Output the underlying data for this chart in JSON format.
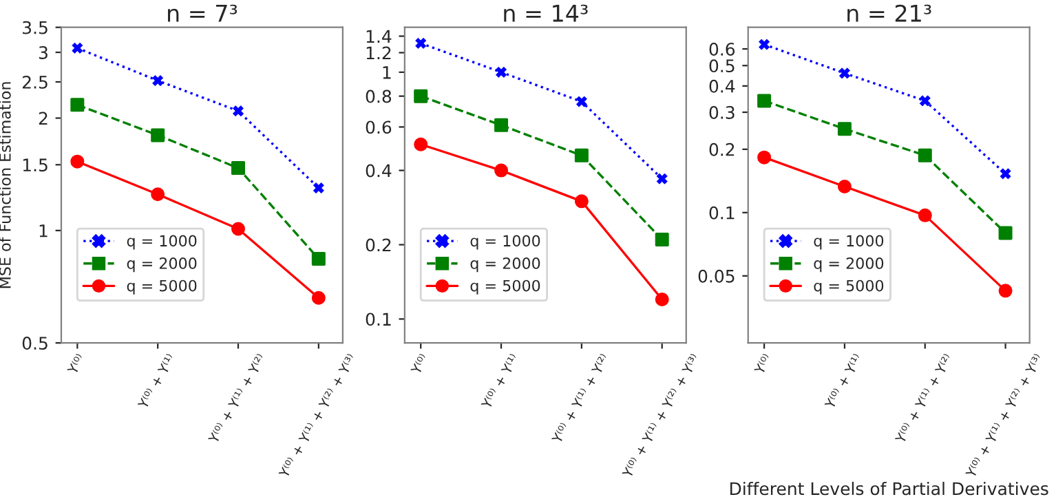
{
  "chart_data": [
    {
      "type": "line",
      "title": "n = 7³",
      "ylabel": "MSE of Function Estimation",
      "log": true,
      "legend": "bottom left",
      "grid": false,
      "categories": [
        "Y⁽⁰⁾",
        "Y⁽⁰⁾ + Y⁽¹⁾",
        "Y⁽⁰⁾ + Y⁽¹⁾ + Y⁽²⁾",
        "Y⁽⁰⁾ + Y⁽¹⁾ + Y⁽²⁾ + Y⁽³⁾"
      ],
      "ylim": [
        0.5,
        3.5
      ],
      "yticks": [
        0.5,
        1,
        1.5,
        2,
        2.5,
        3,
        3.5
      ],
      "series": [
        {
          "name": "q = 1000",
          "color": "#0000ff",
          "marker": "cross",
          "line_style": "dotted",
          "values": [
            3.08,
            2.52,
            2.09,
            1.3
          ]
        },
        {
          "name": "q = 2000",
          "color": "#008000",
          "marker": "square",
          "line_style": "dashed",
          "values": [
            2.17,
            1.8,
            1.47,
            0.84
          ]
        },
        {
          "name": "q = 5000",
          "color": "#ff0000",
          "marker": "circle",
          "line_style": "solid",
          "values": [
            1.53,
            1.25,
            1.01,
            0.66
          ]
        }
      ]
    },
    {
      "type": "line",
      "title": "n = 14³",
      "log": true,
      "legend": "bottom left",
      "grid": false,
      "categories": [
        "Y⁽⁰⁾",
        "Y⁽⁰⁾ + Y⁽¹⁾",
        "Y⁽⁰⁾ + Y⁽¹⁾ + Y⁽²⁾",
        "Y⁽⁰⁾ + Y⁽¹⁾ + Y⁽²⁾ + Y⁽³⁾"
      ],
      "ylim": [
        0.08,
        1.52
      ],
      "yticks": [
        0.1,
        0.2,
        0.4,
        0.6,
        0.8,
        1,
        1.2,
        1.4
      ],
      "series": [
        {
          "name": "q = 1000",
          "color": "#0000ff",
          "marker": "cross",
          "line_style": "dotted",
          "values": [
            1.31,
            1.0,
            0.76,
            0.37
          ]
        },
        {
          "name": "q = 2000",
          "color": "#008000",
          "marker": "square",
          "line_style": "dashed",
          "values": [
            0.8,
            0.61,
            0.46,
            0.21
          ]
        },
        {
          "name": "q = 5000",
          "color": "#ff0000",
          "marker": "circle",
          "line_style": "solid",
          "values": [
            0.51,
            0.4,
            0.3,
            0.12
          ]
        }
      ]
    },
    {
      "type": "line",
      "title": "n = 21³",
      "xlabel": "Different Levels of Partial Derivatives",
      "log": true,
      "legend": "bottom left",
      "grid": false,
      "categories": [
        "Y⁽⁰⁾",
        "Y⁽⁰⁾ + Y⁽¹⁾",
        "Y⁽⁰⁾ + Y⁽¹⁾ + Y⁽²⁾",
        "Y⁽⁰⁾ + Y⁽¹⁾ + Y⁽²⁾ + Y⁽³⁾"
      ],
      "ylim": [
        0.024,
        0.76
      ],
      "yticks": [
        0.05,
        0.1,
        0.2,
        0.3,
        0.4,
        0.5,
        0.6
      ],
      "series": [
        {
          "name": "q = 1000",
          "color": "#0000ff",
          "marker": "cross",
          "line_style": "dotted",
          "values": [
            0.63,
            0.46,
            0.34,
            0.153
          ]
        },
        {
          "name": "q = 2000",
          "color": "#008000",
          "marker": "square",
          "line_style": "dashed",
          "values": [
            0.34,
            0.25,
            0.187,
            0.08
          ]
        },
        {
          "name": "q = 5000",
          "color": "#ff0000",
          "marker": "circle",
          "line_style": "solid",
          "values": [
            0.183,
            0.133,
            0.097,
            0.0425
          ]
        }
      ]
    }
  ]
}
